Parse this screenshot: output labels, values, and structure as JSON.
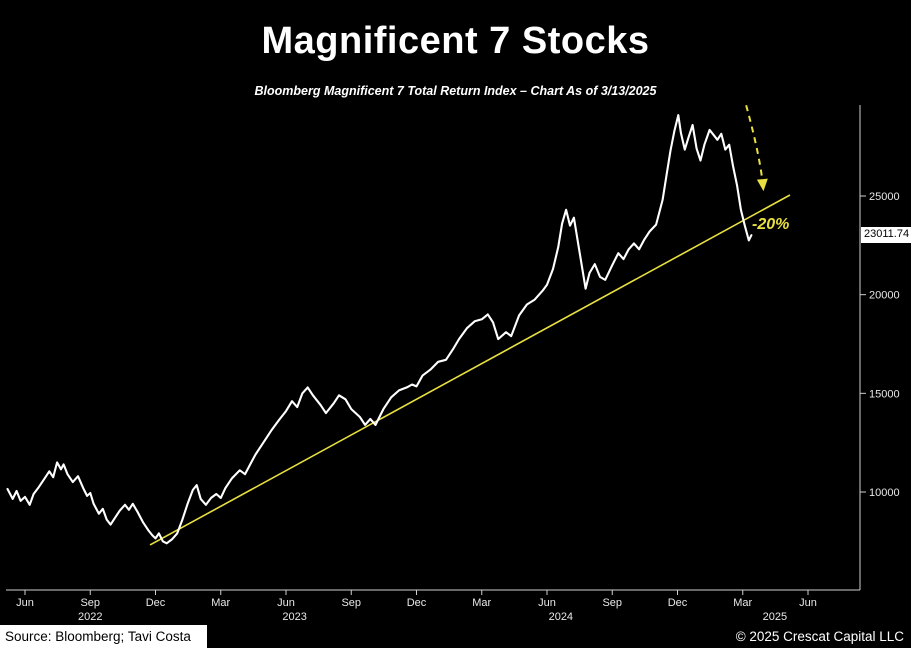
{
  "title": "Magnificent 7 Stocks",
  "subtitle": "Bloomberg Magnificent 7 Total Return Index – Chart As of 3/13/2025",
  "footer": {
    "source": "Source: Bloomberg; Tavi Costa",
    "copyright": "© 2025 Crescat Capital LLC"
  },
  "chart_data": {
    "type": "line",
    "title": "Magnificent 7 Stocks",
    "subtitle": "Bloomberg Magnificent 7 Total Return Index – Chart As of 3/13/2025",
    "xlabel": "",
    "ylabel": "",
    "legend": "none",
    "grid": false,
    "y_axis": {
      "side": "right",
      "ticks": [
        10000,
        15000,
        20000,
        25000
      ],
      "range": [
        7000,
        29500
      ]
    },
    "x_axis": {
      "range": [
        2022.35,
        2025.62
      ],
      "ticks": [
        {
          "label": "Jun",
          "t": 2022.417
        },
        {
          "label": "Sep",
          "t": 2022.667
        },
        {
          "label": "Dec",
          "t": 2022.917
        },
        {
          "label": "Mar",
          "t": 2023.167
        },
        {
          "label": "Jun",
          "t": 2023.417
        },
        {
          "label": "Sep",
          "t": 2023.667
        },
        {
          "label": "Dec",
          "t": 2023.917
        },
        {
          "label": "Mar",
          "t": 2024.167
        },
        {
          "label": "Jun",
          "t": 2024.417
        },
        {
          "label": "Sep",
          "t": 2024.667
        },
        {
          "label": "Dec",
          "t": 2024.917
        },
        {
          "label": "Mar",
          "t": 2025.167
        },
        {
          "label": "Jun",
          "t": 2025.417
        }
      ],
      "years": [
        {
          "label": "2022",
          "t": 2022.667
        },
        {
          "label": "2023",
          "t": 2023.45
        },
        {
          "label": "2024",
          "t": 2024.47
        },
        {
          "label": "2025",
          "t": 2025.29
        }
      ]
    },
    "last_price": 23011.74,
    "last_price_label": "23011.74",
    "annotations": {
      "drawdown_label": "-20%",
      "arrow": {
        "from_t": 2025.18,
        "from_v": 29600,
        "to_t": 2025.245,
        "to_v": 25450
      }
    },
    "trendline": {
      "t1": 2022.896,
      "v1": 7315,
      "t2": 2025.348,
      "v2": 25050
    },
    "colors": {
      "background": "#000000",
      "line": "#ffffff",
      "trendline": "#e8e040",
      "annotation": "#e8e040",
      "axis": "#cfcfcf",
      "tick_text": "#e8e8e8"
    },
    "series": [
      {
        "name": "Bloomberg Magnificent 7 Total Return Index",
        "points": [
          [
            2022.35,
            10150
          ],
          [
            2022.37,
            9650
          ],
          [
            2022.385,
            10050
          ],
          [
            2022.4,
            9550
          ],
          [
            2022.417,
            9750
          ],
          [
            2022.435,
            9350
          ],
          [
            2022.45,
            9900
          ],
          [
            2022.47,
            10250
          ],
          [
            2022.49,
            10650
          ],
          [
            2022.51,
            11050
          ],
          [
            2022.525,
            10750
          ],
          [
            2022.54,
            11500
          ],
          [
            2022.555,
            11150
          ],
          [
            2022.565,
            11400
          ],
          [
            2022.58,
            10900
          ],
          [
            2022.6,
            10500
          ],
          [
            2022.62,
            10800
          ],
          [
            2022.64,
            10200
          ],
          [
            2022.655,
            9800
          ],
          [
            2022.667,
            9950
          ],
          [
            2022.68,
            9400
          ],
          [
            2022.7,
            8900
          ],
          [
            2022.715,
            9150
          ],
          [
            2022.73,
            8600
          ],
          [
            2022.745,
            8350
          ],
          [
            2022.76,
            8650
          ],
          [
            2022.78,
            9050
          ],
          [
            2022.8,
            9350
          ],
          [
            2022.815,
            9100
          ],
          [
            2022.83,
            9400
          ],
          [
            2022.85,
            8950
          ],
          [
            2022.87,
            8450
          ],
          [
            2022.89,
            8050
          ],
          [
            2022.905,
            7800
          ],
          [
            2022.917,
            7650
          ],
          [
            2022.93,
            7900
          ],
          [
            2022.945,
            7500
          ],
          [
            2022.96,
            7400
          ],
          [
            2022.98,
            7600
          ],
          [
            2023.0,
            7900
          ],
          [
            2023.02,
            8600
          ],
          [
            2023.04,
            9400
          ],
          [
            2023.06,
            10100
          ],
          [
            2023.075,
            10350
          ],
          [
            2023.09,
            9650
          ],
          [
            2023.11,
            9350
          ],
          [
            2023.13,
            9700
          ],
          [
            2023.15,
            9900
          ],
          [
            2023.167,
            9700
          ],
          [
            2023.185,
            10200
          ],
          [
            2023.21,
            10700
          ],
          [
            2023.24,
            11100
          ],
          [
            2023.26,
            10900
          ],
          [
            2023.28,
            11400
          ],
          [
            2023.3,
            11900
          ],
          [
            2023.33,
            12500
          ],
          [
            2023.36,
            13100
          ],
          [
            2023.39,
            13650
          ],
          [
            2023.417,
            14100
          ],
          [
            2023.44,
            14600
          ],
          [
            2023.46,
            14300
          ],
          [
            2023.48,
            15000
          ],
          [
            2023.5,
            15300
          ],
          [
            2023.52,
            14900
          ],
          [
            2023.55,
            14400
          ],
          [
            2023.57,
            14000
          ],
          [
            2023.6,
            14500
          ],
          [
            2023.62,
            14900
          ],
          [
            2023.645,
            14700
          ],
          [
            2023.667,
            14200
          ],
          [
            2023.7,
            13800
          ],
          [
            2023.72,
            13400
          ],
          [
            2023.74,
            13700
          ],
          [
            2023.76,
            13400
          ],
          [
            2023.79,
            14200
          ],
          [
            2023.82,
            14800
          ],
          [
            2023.85,
            15150
          ],
          [
            2023.88,
            15300
          ],
          [
            2023.9,
            15450
          ],
          [
            2023.917,
            15350
          ],
          [
            2023.94,
            15900
          ],
          [
            2023.97,
            16200
          ],
          [
            2024.0,
            16600
          ],
          [
            2024.03,
            16700
          ],
          [
            2024.06,
            17300
          ],
          [
            2024.08,
            17750
          ],
          [
            2024.11,
            18300
          ],
          [
            2024.14,
            18650
          ],
          [
            2024.167,
            18750
          ],
          [
            2024.19,
            19000
          ],
          [
            2024.21,
            18600
          ],
          [
            2024.23,
            17750
          ],
          [
            2024.26,
            18100
          ],
          [
            2024.28,
            17900
          ],
          [
            2024.31,
            18950
          ],
          [
            2024.34,
            19500
          ],
          [
            2024.37,
            19750
          ],
          [
            2024.4,
            20200
          ],
          [
            2024.417,
            20500
          ],
          [
            2024.44,
            21300
          ],
          [
            2024.46,
            22400
          ],
          [
            2024.475,
            23600
          ],
          [
            2024.49,
            24300
          ],
          [
            2024.505,
            23500
          ],
          [
            2024.52,
            23900
          ],
          [
            2024.54,
            22300
          ],
          [
            2024.565,
            20300
          ],
          [
            2024.58,
            21100
          ],
          [
            2024.6,
            21550
          ],
          [
            2024.62,
            20900
          ],
          [
            2024.64,
            20750
          ],
          [
            2024.667,
            21500
          ],
          [
            2024.69,
            22100
          ],
          [
            2024.71,
            21800
          ],
          [
            2024.73,
            22300
          ],
          [
            2024.75,
            22600
          ],
          [
            2024.77,
            22300
          ],
          [
            2024.79,
            22800
          ],
          [
            2024.81,
            23200
          ],
          [
            2024.835,
            23550
          ],
          [
            2024.86,
            24800
          ],
          [
            2024.875,
            26050
          ],
          [
            2024.89,
            27300
          ],
          [
            2024.905,
            28300
          ],
          [
            2024.92,
            29100
          ],
          [
            2024.93,
            28200
          ],
          [
            2024.945,
            27350
          ],
          [
            2024.96,
            28000
          ],
          [
            2024.975,
            28600
          ],
          [
            2024.99,
            27400
          ],
          [
            2025.005,
            26800
          ],
          [
            2025.02,
            27600
          ],
          [
            2025.04,
            28350
          ],
          [
            2025.055,
            28100
          ],
          [
            2025.07,
            27850
          ],
          [
            2025.085,
            28150
          ],
          [
            2025.1,
            27350
          ],
          [
            2025.115,
            27600
          ],
          [
            2025.13,
            26500
          ],
          [
            2025.145,
            25550
          ],
          [
            2025.16,
            24300
          ],
          [
            2025.175,
            23500
          ],
          [
            2025.19,
            22750
          ],
          [
            2025.2,
            23011.74
          ]
        ]
      }
    ]
  }
}
